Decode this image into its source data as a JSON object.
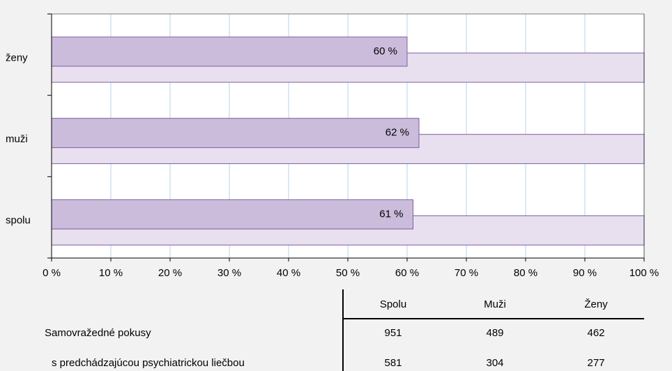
{
  "chart_data": {
    "type": "bar",
    "orientation": "horizontal",
    "overlap": true,
    "categories": [
      "ženy",
      "muži",
      "spolu"
    ],
    "series": [
      {
        "color": "#e8e0ef",
        "values": [
          100,
          100,
          100
        ]
      },
      {
        "color": "#cbbcdc",
        "values": [
          60,
          62,
          61
        ],
        "value_labels": [
          "60 %",
          "62 %",
          "61 %"
        ]
      }
    ],
    "edge_color": "#7b5fa0",
    "xlim": [
      0,
      100
    ],
    "xticks": [
      {
        "value": 0,
        "label": "0 %"
      },
      {
        "value": 10,
        "label": "10 %"
      },
      {
        "value": 20,
        "label": "20 %"
      },
      {
        "value": 30,
        "label": "30 %"
      },
      {
        "value": 40,
        "label": "40 %"
      },
      {
        "value": 50,
        "label": "50 %"
      },
      {
        "value": 60,
        "label": "60 %"
      },
      {
        "value": 70,
        "label": "70 %"
      },
      {
        "value": 80,
        "label": "80 %"
      },
      {
        "value": 90,
        "label": "90 %"
      },
      {
        "value": 100,
        "label": "100 %"
      }
    ],
    "grid": true
  },
  "table": {
    "columns": [
      "Spolu",
      "Muži",
      "Ženy"
    ],
    "rows": [
      {
        "label": "Samovražedné pokusy",
        "values": [
          951,
          489,
          462
        ]
      },
      {
        "label": "s predchádzajúcou psychiatrickou liečbou",
        "values": [
          581,
          304,
          277
        ]
      }
    ]
  }
}
